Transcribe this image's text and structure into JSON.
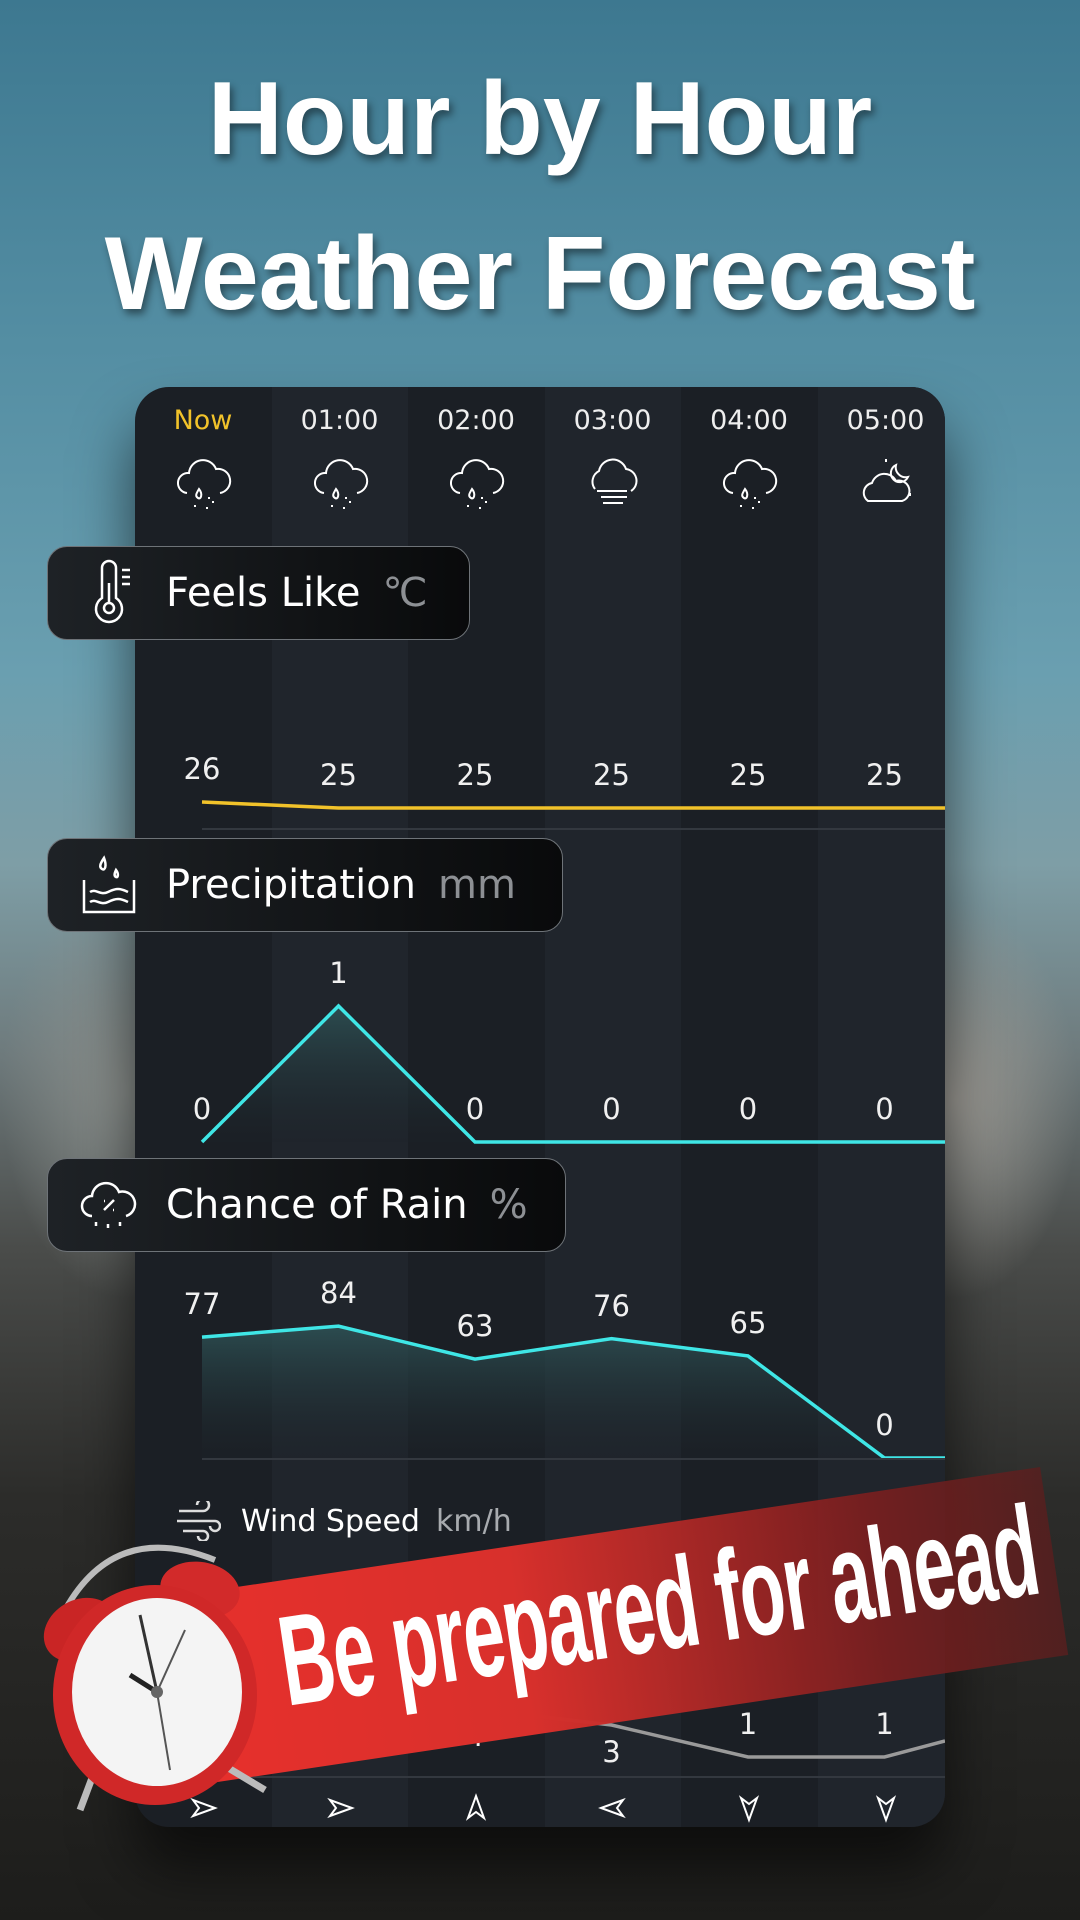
{
  "headline": {
    "line1": "Hour by Hour",
    "line2": "Weather Forecast"
  },
  "hours": [
    {
      "label": "Now",
      "icon": "cloud-rain-icon",
      "wind_dir": "arrow-east-icon"
    },
    {
      "label": "01:00",
      "icon": "cloud-rain-icon",
      "wind_dir": "arrow-east-icon"
    },
    {
      "label": "02:00",
      "icon": "cloud-rain-icon",
      "wind_dir": "arrow-north-icon"
    },
    {
      "label": "03:00",
      "icon": "cloud-fog-icon",
      "wind_dir": "arrow-west-icon"
    },
    {
      "label": "04:00",
      "icon": "cloud-rain-icon",
      "wind_dir": "arrow-south-icon"
    },
    {
      "label": "05:00",
      "icon": "cloud-moon-icon",
      "wind_dir": "arrow-south-icon"
    }
  ],
  "feels_like": {
    "title": "Feels Like",
    "unit": "℃",
    "values": [
      26,
      25,
      25,
      25,
      25,
      25
    ],
    "color": "#f1c22a"
  },
  "precipitation": {
    "title": "Precipitation",
    "unit": "mm",
    "values": [
      0,
      1,
      0,
      0,
      0,
      0
    ],
    "color": "#3fe6e6"
  },
  "chance_of_rain": {
    "title": "Chance of Rain",
    "unit": "%",
    "values": [
      77,
      84,
      63,
      76,
      65,
      0
    ],
    "color": "#3fe6e6"
  },
  "wind_speed": {
    "title": "Wind Speed",
    "unit": "km/h",
    "values": [
      null,
      null,
      4,
      3,
      1,
      1
    ],
    "color": "#9a9a9a"
  },
  "banner": {
    "text": "Be prepared for ahead",
    "color": "#e8302c"
  }
}
